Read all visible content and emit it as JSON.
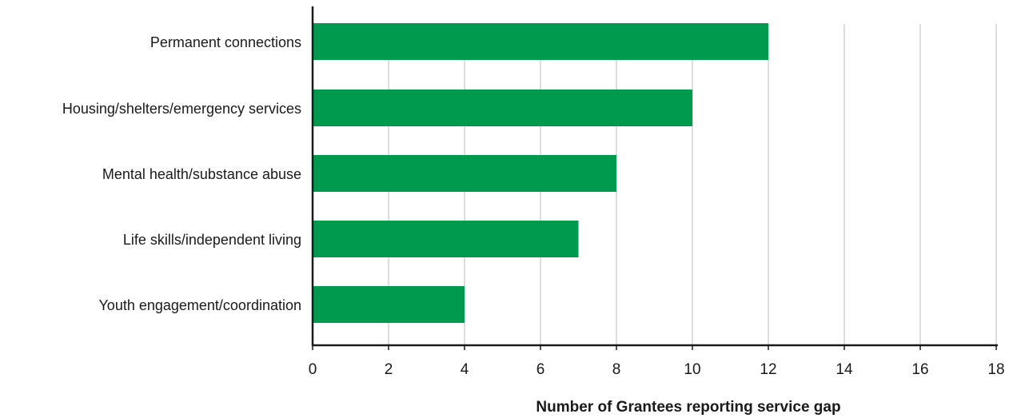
{
  "chart_data": {
    "type": "bar",
    "orientation": "horizontal",
    "categories": [
      "Permanent connections",
      "Housing/shelters/emergency services",
      "Mental health/substance abuse",
      "Life skills/independent living",
      "Youth engagement/coordination"
    ],
    "values": [
      12,
      10,
      8,
      7,
      4
    ],
    "xlabel": "Number of Grantees reporting service gap",
    "ylabel": "",
    "xlim": [
      0,
      18
    ],
    "xticks": [
      0,
      2,
      4,
      6,
      8,
      10,
      12,
      14,
      16,
      18
    ],
    "grid": "vertical",
    "legend": "none",
    "bar_color": "#009A4E"
  }
}
